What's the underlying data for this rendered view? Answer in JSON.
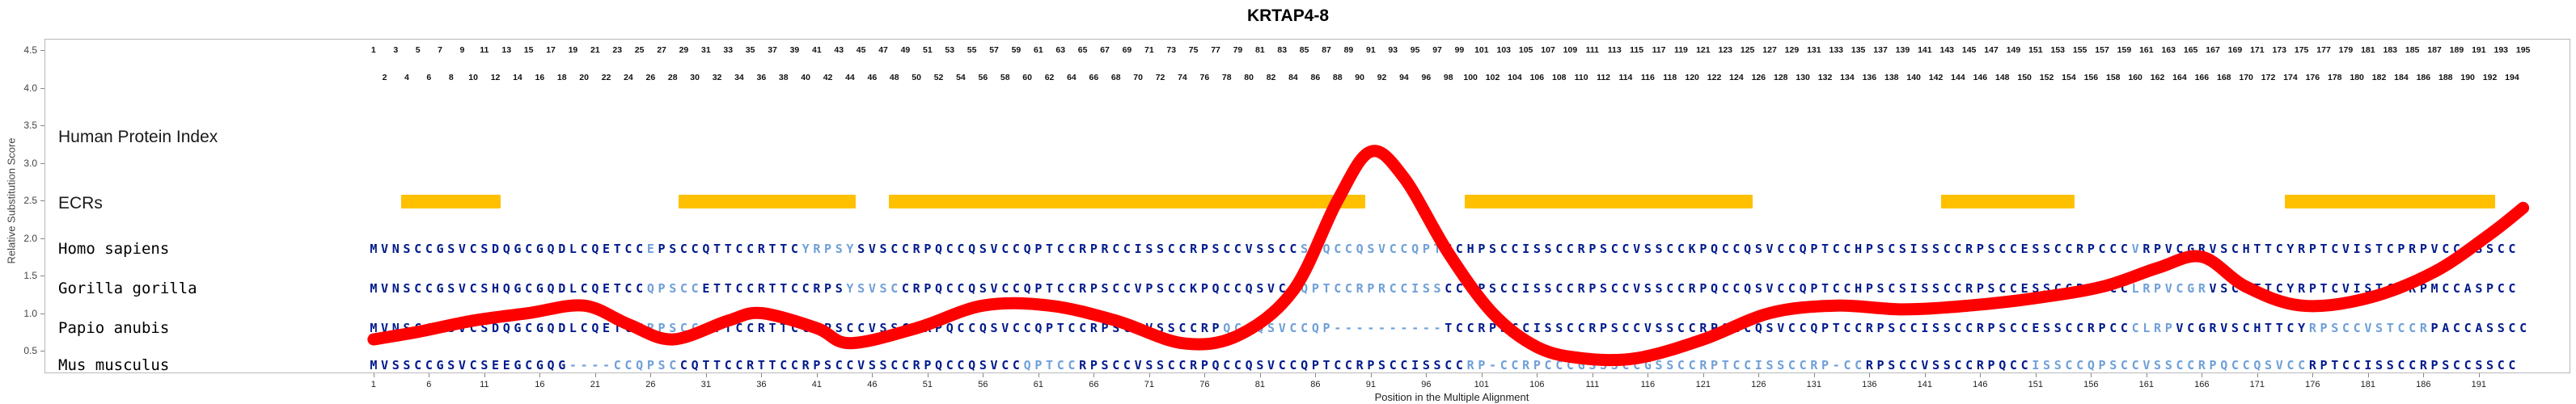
{
  "title": "KRTAP4-8",
  "axes": {
    "y_label": "Relative Substitution Score",
    "x_label": "Position in the Multiple Alignment",
    "y_ticks": [
      4.5,
      4.0,
      3.5,
      3.0,
      2.5,
      2.0,
      1.5,
      1.0,
      0.5
    ],
    "x_ticks": [
      1,
      6,
      11,
      16,
      21,
      26,
      31,
      36,
      41,
      46,
      51,
      56,
      61,
      66,
      71,
      76,
      81,
      86,
      91,
      96,
      101,
      106,
      111,
      116,
      121,
      126,
      131,
      136,
      141,
      146,
      151,
      156,
      161,
      166,
      171,
      176,
      181,
      186,
      191
    ]
  },
  "labels": {
    "human_protein_index": "Human Protein Index",
    "ecrs": "ECRs"
  },
  "alignment": {
    "length": 195,
    "species": [
      {
        "name": "Homo sapiens",
        "sequence": "MVNSCCGSVCSDQGCGQDLCQETCCEPSCCQTTCCRTTCYRPSYSVSCCRPQCCQSVCCQPTCCRPRCCISSCCRPSCCVSSCCSRQCCQSVCCQPTCCHPSCCISSCCRPSCCVSSCCKPQCCQSVCCQPTCCHPSCSISSCCRPSCCESSCCRPCCCVRPVCGRVSCHTTCYRPTCVISTCPRPVCCASSCC",
        "light_segments": [
          [
            26,
            26
          ],
          [
            40,
            44
          ],
          [
            85,
            97
          ],
          [
            160,
            160
          ]
        ]
      },
      {
        "name": "Gorilla gorilla",
        "sequence": "MVNSCCGSVCSHQGCGQDLCQETCCQPSCCETTCCRTTCCRPSYSVSCCRPQCCQSVCCQPTCCRPSCCVPSCCKPQCCQSVCCQPTCCRPRCCISSCCRPSCCISSCCRPSCCVSSCCRPQCCQSVCCQPTCCHPSCSISSCCRPSCCESSCCRPCCCLRPVCGRVSCHTTCYRPTCVISTCPRPMCCASPCC",
        "light_segments": [
          [
            26,
            30
          ],
          [
            44,
            48
          ],
          [
            85,
            97
          ],
          [
            160,
            166
          ]
        ]
      },
      {
        "name": "Papio anubis",
        "sequence": "MVNSCCGSVCSDQGCGQDLCQETCCRPSCCQTTCCRTTCCRPSCCVSSCCRPQCCQSVCCQPTCCRPSCCVSSCCRPQCCQSVCCQP----------TCCRPSCCISSCCRPSCCVSSCCRPQCCQSVCCQPTCCRPSCCISSCCRPSCCESSCCRPCCCLRPVCGRVSCHTTCYRPSCCVSTCCRPACCASSCC",
        "light_segments": [
          [
            26,
            30
          ],
          [
            78,
            97
          ],
          [
            160,
            163
          ],
          [
            176,
            186
          ]
        ]
      },
      {
        "name": "Mus musculus",
        "sequence": "MVSSCCGSVCSEEGCGQG----CCQPSCCQTTCCRTTCCRPSCCVSSCCRPQCCQSVCCQPTCCRPSCCVSSCCRPQCCQSVCCQPTCCRPSCCISSCCRP-CCRPCCCGSSSCCGSSCCRPTCCISSCCRP-CCRPSCCVSSCCRPQCCISSCCQPSCCVSSCCRPQCCQSVCCRPTCCISSCCRPSCCSSCC",
        "light_segments": [
          [
            19,
            28
          ],
          [
            60,
            64
          ],
          [
            100,
            135
          ],
          [
            151,
            175
          ]
        ]
      }
    ]
  },
  "ecr_bars": [
    {
      "start": 4,
      "end": 12
    },
    {
      "start": 29,
      "end": 44
    },
    {
      "start": 48,
      "end": 90
    },
    {
      "start": 100,
      "end": 125
    },
    {
      "start": 143,
      "end": 154
    },
    {
      "start": 174,
      "end": 192
    }
  ],
  "chart_data": {
    "type": "line",
    "title": "KRTAP4-8",
    "xlabel": "Position in the Multiple Alignment",
    "ylabel": "Relative Substitution Score",
    "xlim": [
      1,
      195
    ],
    "ylim": [
      0.5,
      4.75
    ],
    "grid": false,
    "legend": "none",
    "series": [
      {
        "name": "relative substitution score",
        "x": [
          1,
          5,
          10,
          15,
          20,
          24,
          28,
          33,
          36,
          41,
          44,
          50,
          56,
          62,
          68,
          74,
          79,
          84,
          88,
          91,
          94,
          98,
          102,
          106,
          110,
          115,
          121,
          127,
          133,
          139,
          145,
          151,
          157,
          162,
          166,
          170,
          175,
          181,
          187,
          192,
          195
        ],
        "y": [
          0.65,
          0.75,
          0.9,
          1.0,
          1.1,
          0.85,
          0.65,
          0.9,
          1.0,
          0.8,
          0.6,
          0.8,
          1.1,
          1.1,
          0.9,
          0.6,
          0.7,
          1.3,
          2.5,
          3.15,
          2.8,
          1.8,
          1.0,
          0.55,
          0.4,
          0.4,
          0.65,
          1.0,
          1.1,
          1.05,
          1.1,
          1.2,
          1.35,
          1.6,
          1.75,
          1.35,
          1.1,
          1.2,
          1.55,
          2.05,
          2.4
        ]
      }
    ]
  },
  "colors": {
    "sequence": "#001a8c",
    "sequence_light": "#6fa0d8",
    "ecr": "#FFC000",
    "curve": "#ff0000"
  }
}
